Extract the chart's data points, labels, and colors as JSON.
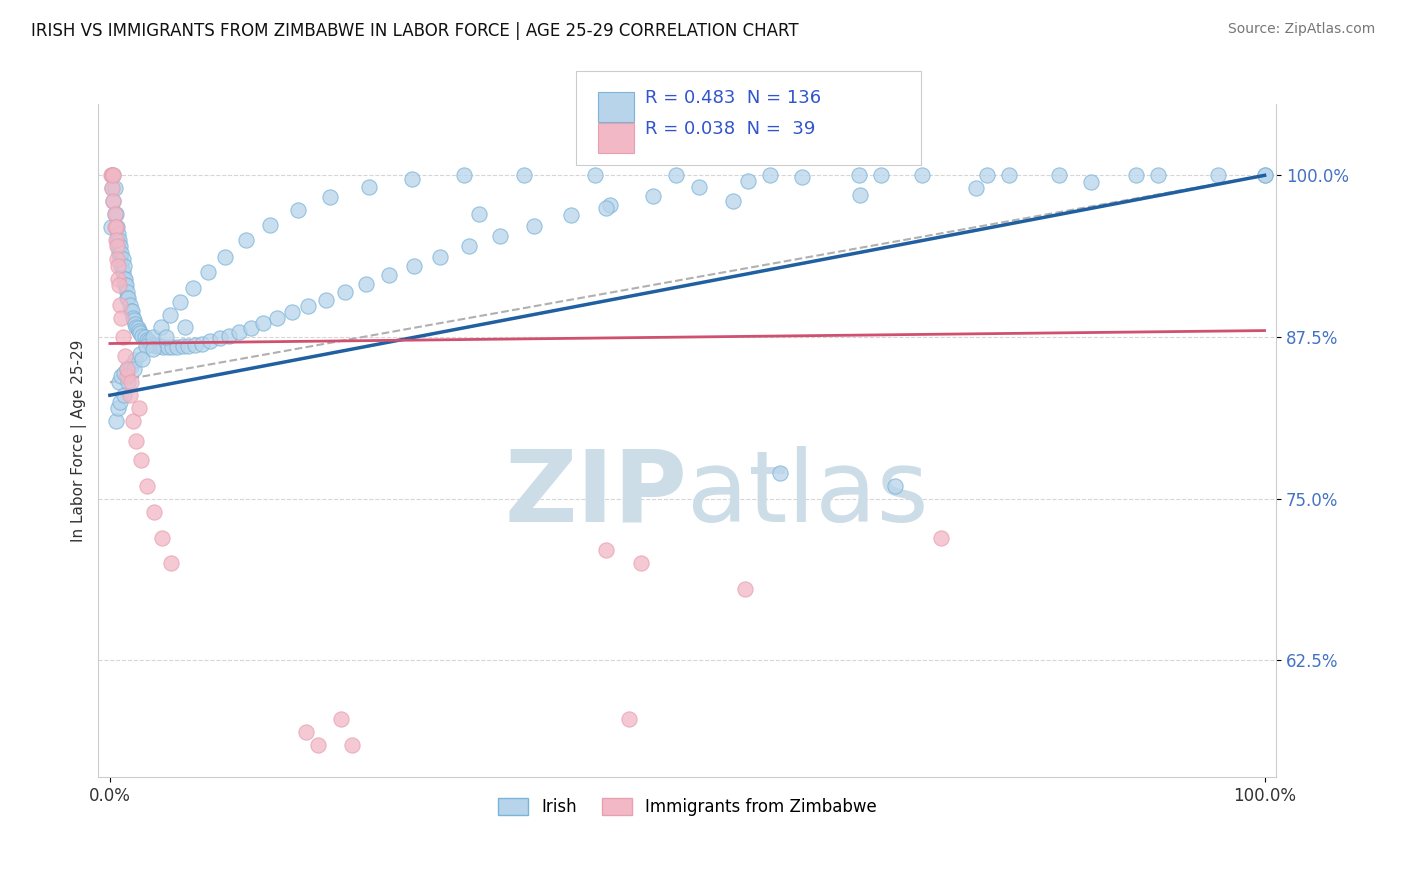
{
  "title": "IRISH VS IMMIGRANTS FROM ZIMBABWE IN LABOR FORCE | AGE 25-29 CORRELATION CHART",
  "source": "Source: ZipAtlas.com",
  "ylabel": "In Labor Force | Age 25-29",
  "y_tick_labels": [
    "62.5%",
    "75.0%",
    "87.5%",
    "100.0%"
  ],
  "y_tick_values": [
    0.625,
    0.75,
    0.875,
    1.0
  ],
  "blue_color": "#7ab4d8",
  "pink_color": "#e8a0b0",
  "blue_fill": "#b8d4ea",
  "pink_fill": "#f2b8c6",
  "blue_line_color": "#2060a0",
  "pink_line_color": "#d05070",
  "dashed_line_color": "#b0b0b0",
  "watermark_color": "#ccdde8",
  "background_color": "#ffffff",
  "irish_R": 0.483,
  "irish_N": 136,
  "zim_R": 0.038,
  "zim_N": 39,
  "irish_line_x0": 0.0,
  "irish_line_y0": 0.83,
  "irish_line_x1": 1.0,
  "irish_line_y1": 1.0,
  "zim_line_x0": 0.0,
  "zim_line_y0": 0.87,
  "zim_line_x1": 1.0,
  "zim_line_y1": 0.88,
  "dashed_line_x0": 0.0,
  "dashed_line_y0": 0.84,
  "dashed_line_x1": 1.0,
  "dashed_line_y1": 1.0,
  "ylim_min": 0.535,
  "ylim_max": 1.055,
  "xlim_min": -0.01,
  "xlim_max": 1.01,
  "irish_x": [
    0.001,
    0.002,
    0.002,
    0.003,
    0.003,
    0.004,
    0.004,
    0.005,
    0.005,
    0.006,
    0.006,
    0.007,
    0.007,
    0.008,
    0.008,
    0.009,
    0.009,
    0.01,
    0.01,
    0.011,
    0.011,
    0.012,
    0.012,
    0.013,
    0.013,
    0.014,
    0.015,
    0.015,
    0.016,
    0.017,
    0.018,
    0.019,
    0.02,
    0.021,
    0.022,
    0.023,
    0.024,
    0.025,
    0.026,
    0.028,
    0.03,
    0.032,
    0.034,
    0.036,
    0.038,
    0.04,
    0.043,
    0.046,
    0.05,
    0.054,
    0.058,
    0.063,
    0.068,
    0.074,
    0.08,
    0.087,
    0.095,
    0.103,
    0.112,
    0.122,
    0.133,
    0.145,
    0.158,
    0.172,
    0.187,
    0.204,
    0.222,
    0.242,
    0.263,
    0.286,
    0.311,
    0.338,
    0.367,
    0.399,
    0.433,
    0.47,
    0.51,
    0.553,
    0.599,
    0.649,
    0.703,
    0.76,
    0.822,
    0.889,
    0.96,
    1.0,
    0.008,
    0.01,
    0.012,
    0.015,
    0.018,
    0.022,
    0.026,
    0.031,
    0.037,
    0.044,
    0.052,
    0.061,
    0.072,
    0.085,
    0.1,
    0.118,
    0.139,
    0.163,
    0.191,
    0.224,
    0.262,
    0.307,
    0.359,
    0.42,
    0.49,
    0.572,
    0.668,
    0.779,
    0.908,
    1.0,
    0.005,
    0.007,
    0.009,
    0.012,
    0.016,
    0.021,
    0.028,
    0.037,
    0.049,
    0.065,
    0.32,
    0.43,
    0.54,
    0.65,
    0.75,
    0.85,
    0.58,
    0.68
  ],
  "irish_y": [
    0.96,
    1.0,
    0.99,
    1.0,
    0.98,
    0.97,
    0.99,
    0.97,
    0.96,
    0.96,
    0.95,
    0.955,
    0.945,
    0.95,
    0.94,
    0.945,
    0.935,
    0.94,
    0.93,
    0.935,
    0.925,
    0.93,
    0.92,
    0.92,
    0.915,
    0.915,
    0.91,
    0.905,
    0.905,
    0.9,
    0.895,
    0.895,
    0.89,
    0.888,
    0.885,
    0.883,
    0.882,
    0.88,
    0.878,
    0.876,
    0.875,
    0.873,
    0.872,
    0.87,
    0.869,
    0.868,
    0.868,
    0.867,
    0.867,
    0.867,
    0.867,
    0.868,
    0.868,
    0.869,
    0.87,
    0.872,
    0.874,
    0.876,
    0.879,
    0.882,
    0.886,
    0.89,
    0.894,
    0.899,
    0.904,
    0.91,
    0.916,
    0.923,
    0.93,
    0.937,
    0.945,
    0.953,
    0.961,
    0.969,
    0.977,
    0.984,
    0.991,
    0.996,
    0.999,
    1.0,
    1.0,
    1.0,
    1.0,
    1.0,
    1.0,
    1.0,
    0.84,
    0.845,
    0.847,
    0.85,
    0.853,
    0.857,
    0.862,
    0.868,
    0.875,
    0.883,
    0.892,
    0.902,
    0.913,
    0.925,
    0.937,
    0.95,
    0.962,
    0.973,
    0.983,
    0.991,
    0.997,
    1.0,
    1.0,
    1.0,
    1.0,
    1.0,
    1.0,
    1.0,
    1.0,
    1.0,
    0.81,
    0.82,
    0.825,
    0.83,
    0.84,
    0.85,
    0.858,
    0.866,
    0.875,
    0.883,
    0.97,
    0.975,
    0.98,
    0.985,
    0.99,
    0.995,
    0.77,
    0.76
  ],
  "zim_x": [
    0.001,
    0.002,
    0.002,
    0.003,
    0.003,
    0.004,
    0.004,
    0.005,
    0.005,
    0.006,
    0.006,
    0.007,
    0.007,
    0.008,
    0.009,
    0.01,
    0.011,
    0.013,
    0.015,
    0.017,
    0.02,
    0.023,
    0.027,
    0.032,
    0.038,
    0.045,
    0.053,
    0.18,
    0.21,
    0.43,
    0.46,
    0.55,
    0.72,
    0.45,
    0.17,
    0.2,
    0.015,
    0.018,
    0.025
  ],
  "zim_y": [
    1.0,
    1.0,
    0.99,
    1.0,
    0.98,
    0.97,
    0.96,
    0.96,
    0.95,
    0.945,
    0.935,
    0.93,
    0.92,
    0.915,
    0.9,
    0.89,
    0.875,
    0.86,
    0.845,
    0.83,
    0.81,
    0.795,
    0.78,
    0.76,
    0.74,
    0.72,
    0.7,
    0.56,
    0.56,
    0.71,
    0.7,
    0.68,
    0.72,
    0.58,
    0.57,
    0.58,
    0.85,
    0.84,
    0.82
  ]
}
